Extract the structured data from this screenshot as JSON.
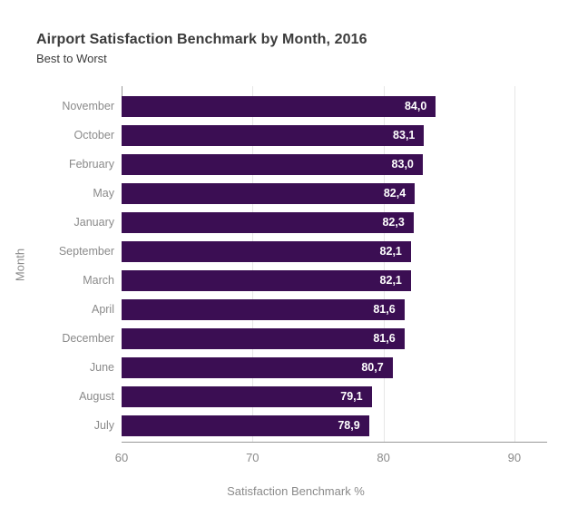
{
  "header": {
    "title": "Airport Satisfaction Benchmark by Month, 2016",
    "subtitle": "Best to Worst"
  },
  "chart_data": {
    "type": "bar",
    "orientation": "horizontal",
    "title": "Airport Satisfaction Benchmark by Month, 2016",
    "subtitle": "Best to Worst",
    "xlabel": "Satisfaction Benchmark %",
    "ylabel": "Month",
    "categories": [
      "November",
      "October",
      "February",
      "May",
      "January",
      "September",
      "March",
      "April",
      "December",
      "June",
      "August",
      "July"
    ],
    "values": [
      84.0,
      83.1,
      83.0,
      82.4,
      82.3,
      82.1,
      82.1,
      81.6,
      81.6,
      80.7,
      79.1,
      78.9
    ],
    "value_labels": [
      "84,0",
      "83,1",
      "83,0",
      "82,4",
      "82,3",
      "82,1",
      "82,1",
      "81,6",
      "81,6",
      "80,7",
      "79,1",
      "78,9"
    ],
    "xticks": [
      "60",
      "70",
      "80",
      "90"
    ],
    "xtick_values": [
      60,
      70,
      80,
      90
    ],
    "xlim": [
      60,
      92.5
    ],
    "grid": true,
    "legend": "none",
    "sort_order": "descending",
    "colors": {
      "bar_fill": "#3b0e53",
      "value_label": "#ffffff",
      "axis_line": "#999999",
      "gridline": "#e7e7e7",
      "tick_label": "#8a8a8a",
      "title_text": "#3b3b3b"
    }
  }
}
